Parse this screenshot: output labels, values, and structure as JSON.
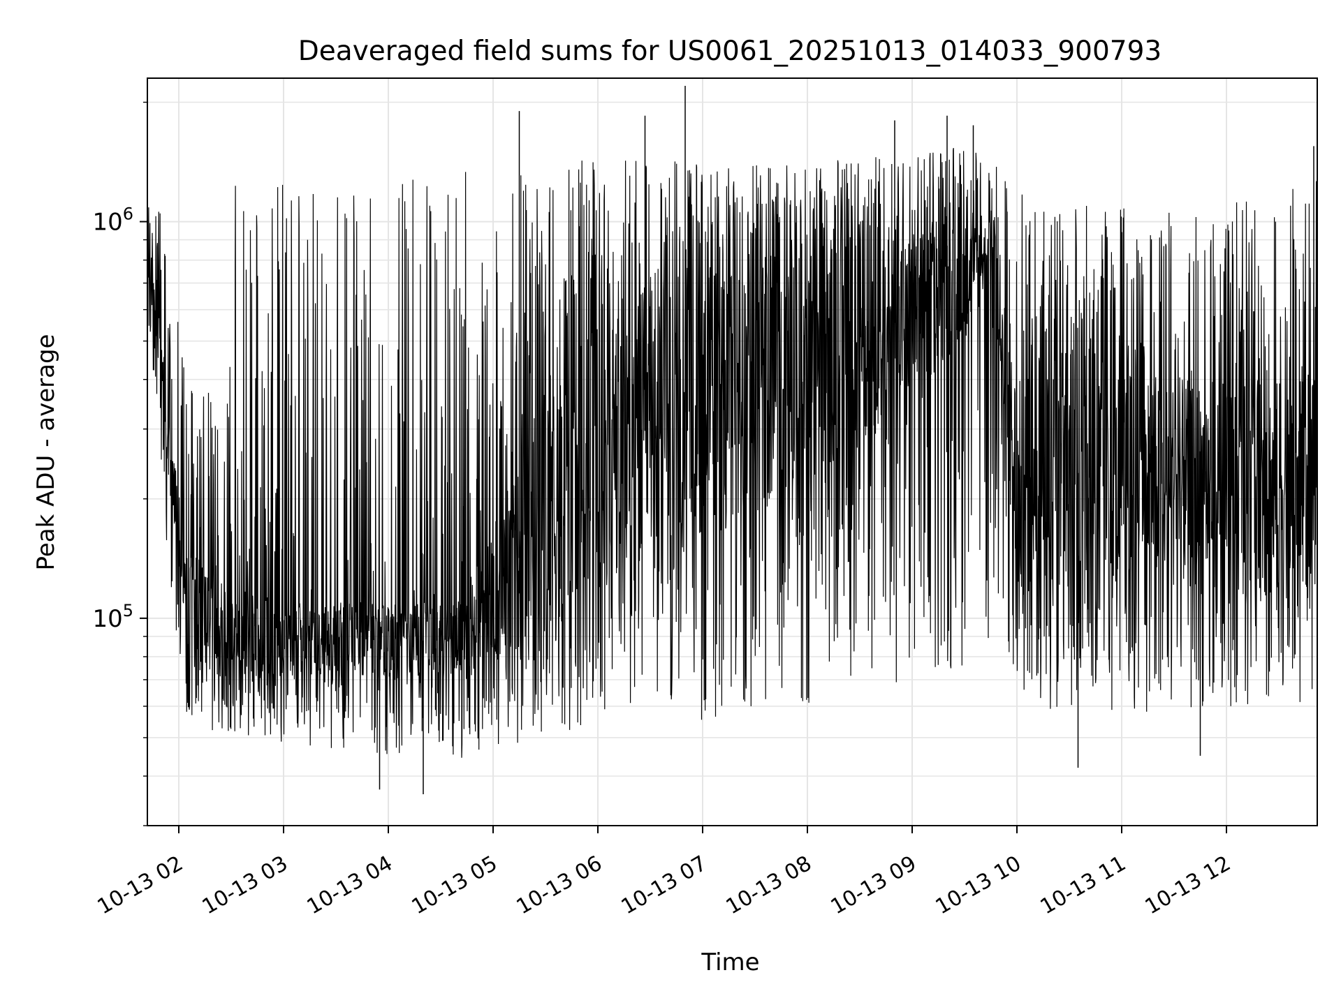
{
  "chart_data": {
    "type": "line",
    "title": "Deaveraged field sums for US0061_20251013_014033_900793",
    "xlabel": "Time",
    "ylabel": "Peak ADU - average",
    "yscale": "log",
    "xlim": [
      "2025-10-13 01:42",
      "2025-10-13 12:52"
    ],
    "ylim": [
      30000,
      2300000
    ],
    "grid": true,
    "line_color": "#000000",
    "x_ticks": [
      {
        "t": "2025-10-13 02:00",
        "label": "10-13 02"
      },
      {
        "t": "2025-10-13 03:00",
        "label": "10-13 03"
      },
      {
        "t": "2025-10-13 04:00",
        "label": "10-13 04"
      },
      {
        "t": "2025-10-13 05:00",
        "label": "10-13 05"
      },
      {
        "t": "2025-10-13 06:00",
        "label": "10-13 06"
      },
      {
        "t": "2025-10-13 07:00",
        "label": "10-13 07"
      },
      {
        "t": "2025-10-13 08:00",
        "label": "10-13 08"
      },
      {
        "t": "2025-10-13 09:00",
        "label": "10-13 09"
      },
      {
        "t": "2025-10-13 10:00",
        "label": "10-13 10"
      },
      {
        "t": "2025-10-13 11:00",
        "label": "10-13 11"
      },
      {
        "t": "2025-10-13 12:00",
        "label": "10-13 12"
      }
    ],
    "y_ticks": [
      {
        "value": 100000,
        "base": "10",
        "exp": "5"
      },
      {
        "value": 1000000,
        "base": "10",
        "exp": "6"
      }
    ],
    "series": [
      {
        "upper_envelope": {
          "t": [
            "2025-10-13 01:42",
            "2025-10-13 01:48",
            "2025-10-13 01:55",
            "2025-10-13 02:05",
            "2025-10-13 02:20",
            "2025-10-13 02:30",
            "2025-10-13 02:50",
            "2025-10-13 03:10",
            "2025-10-13 03:40",
            "2025-10-13 04:10",
            "2025-10-13 04:40",
            "2025-10-13 05:00",
            "2025-10-13 05:30",
            "2025-10-13 06:00",
            "2025-10-13 06:30",
            "2025-10-13 07:00",
            "2025-10-13 07:30",
            "2025-10-13 08:00",
            "2025-10-13 08:30",
            "2025-10-13 09:00",
            "2025-10-13 09:30",
            "2025-10-13 09:45",
            "2025-10-13 10:00",
            "2025-10-13 10:30",
            "2025-10-13 11:00",
            "2025-10-13 11:30",
            "2025-10-13 12:00",
            "2025-10-13 12:30",
            "2025-10-13 12:52"
          ],
          "v": [
            1250000,
            1150000,
            700000,
            450000,
            400000,
            1250000,
            1250000,
            1250000,
            1280000,
            1300000,
            1350000,
            1400000,
            1400000,
            1450000,
            1450000,
            1400000,
            1400000,
            1420000,
            1450000,
            1500000,
            1550000,
            1550000,
            1200000,
            1100000,
            1100000,
            1100000,
            1100000,
            1200000,
            1300000
          ]
        },
        "upper_core": {
          "t": [
            "2025-10-13 01:42",
            "2025-10-13 01:48",
            "2025-10-13 01:55",
            "2025-10-13 02:05",
            "2025-10-13 02:20",
            "2025-10-13 02:30",
            "2025-10-13 03:00",
            "2025-10-13 04:00",
            "2025-10-13 04:40",
            "2025-10-13 05:00",
            "2025-10-13 05:30",
            "2025-10-13 06:00",
            "2025-10-13 06:30",
            "2025-10-13 07:00",
            "2025-10-13 07:30",
            "2025-10-13 08:00",
            "2025-10-13 08:30",
            "2025-10-13 09:00",
            "2025-10-13 09:30",
            "2025-10-13 09:45",
            "2025-10-13 10:00",
            "2025-10-13 10:30",
            "2025-10-13 11:00",
            "2025-10-13 11:30",
            "2025-10-13 12:00",
            "2025-10-13 12:30",
            "2025-10-13 12:52"
          ],
          "v": [
            1000000,
            700000,
            300000,
            150000,
            130000,
            120000,
            110000,
            110000,
            110000,
            150000,
            400000,
            600000,
            700000,
            800000,
            850000,
            900000,
            950000,
            950000,
            1000000,
            1000000,
            400000,
            450000,
            450000,
            400000,
            400000,
            400000,
            400000
          ]
        },
        "lower_core": {
          "t": [
            "2025-10-13 01:42",
            "2025-10-13 01:48",
            "2025-10-13 01:55",
            "2025-10-13 02:05",
            "2025-10-13 02:20",
            "2025-10-13 02:30",
            "2025-10-13 03:00",
            "2025-10-13 04:00",
            "2025-10-13 04:40",
            "2025-10-13 05:00",
            "2025-10-13 05:30",
            "2025-10-13 06:00",
            "2025-10-13 06:30",
            "2025-10-13 07:00",
            "2025-10-13 07:30",
            "2025-10-13 08:00",
            "2025-10-13 08:30",
            "2025-10-13 09:00",
            "2025-10-13 09:30",
            "2025-10-13 09:45",
            "2025-10-13 10:00",
            "2025-10-13 10:30",
            "2025-10-13 11:00",
            "2025-10-13 11:30",
            "2025-10-13 12:00",
            "2025-10-13 12:30",
            "2025-10-13 12:52"
          ],
          "v": [
            800000,
            450000,
            200000,
            80000,
            70000,
            70000,
            70000,
            70000,
            70000,
            75000,
            90000,
            110000,
            130000,
            150000,
            180000,
            220000,
            280000,
            350000,
            500000,
            700000,
            110000,
            120000,
            120000,
            120000,
            110000,
            110000,
            120000
          ]
        },
        "lower_envelope": {
          "t": [
            "2025-10-13 01:42",
            "2025-10-13 01:48",
            "2025-10-13 01:55",
            "2025-10-13 02:05",
            "2025-10-13 02:20",
            "2025-10-13 02:30",
            "2025-10-13 03:00",
            "2025-10-13 04:00",
            "2025-10-13 04:40",
            "2025-10-13 05:00",
            "2025-10-13 05:30",
            "2025-10-13 06:00",
            "2025-10-13 06:30",
            "2025-10-13 07:00",
            "2025-10-13 07:30",
            "2025-10-13 08:00",
            "2025-10-13 08:30",
            "2025-10-13 09:00",
            "2025-10-13 09:30",
            "2025-10-13 09:45",
            "2025-10-13 10:00",
            "2025-10-13 10:30",
            "2025-10-13 11:00",
            "2025-10-13 11:30",
            "2025-10-13 12:00",
            "2025-10-13 12:30",
            "2025-10-13 12:52"
          ],
          "v": [
            600000,
            300000,
            120000,
            55000,
            50000,
            50000,
            48000,
            45000,
            42000,
            45000,
            50000,
            55000,
            58000,
            55000,
            55000,
            60000,
            65000,
            70000,
            75000,
            80000,
            60000,
            58000,
            58000,
            58000,
            58000,
            58000,
            60000
          ]
        },
        "spikes": [
          {
            "t": "2025-10-13 05:15",
            "v": 1900000
          },
          {
            "t": "2025-10-13 06:27",
            "v": 1850000
          },
          {
            "t": "2025-10-13 06:50",
            "v": 2200000
          },
          {
            "t": "2025-10-13 08:50",
            "v": 1800000
          },
          {
            "t": "2025-10-13 09:20",
            "v": 1850000
          },
          {
            "t": "2025-10-13 09:35",
            "v": 1750000
          },
          {
            "t": "2025-10-13 12:50",
            "v": 1550000
          },
          {
            "t": "2025-10-13 11:45",
            "v": 45000
          },
          {
            "t": "2025-10-13 10:35",
            "v": 42000
          },
          {
            "t": "2025-10-13 04:20",
            "v": 36000
          },
          {
            "t": "2025-10-13 03:55",
            "v": 37000
          }
        ]
      }
    ]
  }
}
